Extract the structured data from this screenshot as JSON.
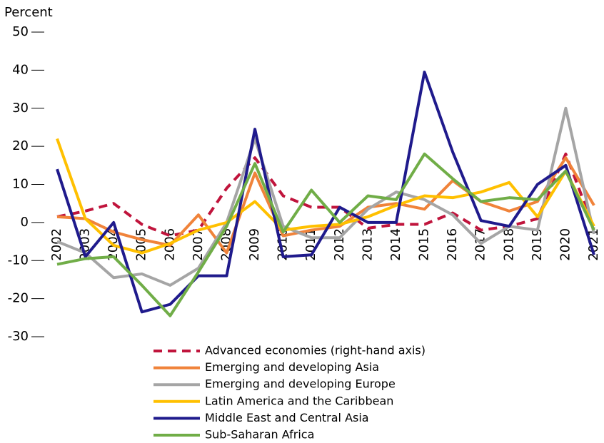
{
  "chart_data": {
    "type": "line",
    "y_label": "Percent",
    "categories": [
      "2002",
      "2003",
      "2004",
      "2005",
      "2006",
      "2007",
      "2008",
      "2009",
      "2010",
      "2011",
      "2012",
      "2013",
      "2014",
      "2015",
      "2016",
      "2017",
      "2018",
      "2019",
      "2020",
      "2021"
    ],
    "ylim": [
      -30,
      50
    ],
    "yticks": [
      -30,
      -20,
      -10,
      0,
      10,
      20,
      30,
      40,
      50
    ],
    "series": [
      {
        "name": "Advanced economies (right-hand axis)",
        "color": "#c0143c",
        "dashed": true,
        "values": [
          1.5,
          3,
          5,
          -0.5,
          -3.5,
          -2,
          9,
          17,
          7,
          4,
          4,
          -1.5,
          -0.5,
          -0.5,
          2.5,
          -2,
          -1,
          1,
          18,
          -1.5
        ]
      },
      {
        "name": "Emerging and developing Asia",
        "color": "#f0833a",
        "values": [
          1.5,
          1,
          -2.5,
          -4.5,
          -6,
          2,
          -8,
          13,
          -3.5,
          -2,
          -1,
          4,
          5,
          3.5,
          11,
          5.5,
          3,
          5.5,
          17,
          4.5
        ]
      },
      {
        "name": "Emerging and developing Europe",
        "color": "#a5a5a5",
        "values": [
          -5,
          -8,
          -14.5,
          -13.5,
          -16.5,
          -12,
          0,
          22,
          -1,
          -4,
          -4,
          3.5,
          8,
          6,
          2,
          -5.5,
          -1,
          -2,
          30,
          -3
        ]
      },
      {
        "name": "Latin America and the Caribbean",
        "color": "#ffc000",
        "values": [
          22,
          1,
          -6,
          -8,
          -5.5,
          -2,
          0,
          5.5,
          -2,
          -1,
          -0.5,
          1.5,
          4.5,
          7,
          6.5,
          8,
          10.5,
          1.5,
          13.5,
          -1
        ]
      },
      {
        "name": "Middle East and Central Asia",
        "color": "#1f1a8c",
        "values": [
          14,
          -9,
          0,
          -23.5,
          -21.5,
          -14,
          -14,
          24.5,
          -9,
          -8.5,
          4,
          0,
          0,
          39.5,
          18.5,
          0.5,
          -1,
          10,
          15,
          -8.5
        ]
      },
      {
        "name": "Sub-Saharan Africa",
        "color": "#70ad47",
        "values": [
          -11,
          -9.5,
          -9,
          -16.5,
          -24.5,
          -13,
          -1,
          15.5,
          -2.5,
          8.5,
          0,
          7,
          6,
          18,
          11.5,
          5.5,
          6.5,
          6,
          13.5,
          -2
        ]
      }
    ]
  }
}
